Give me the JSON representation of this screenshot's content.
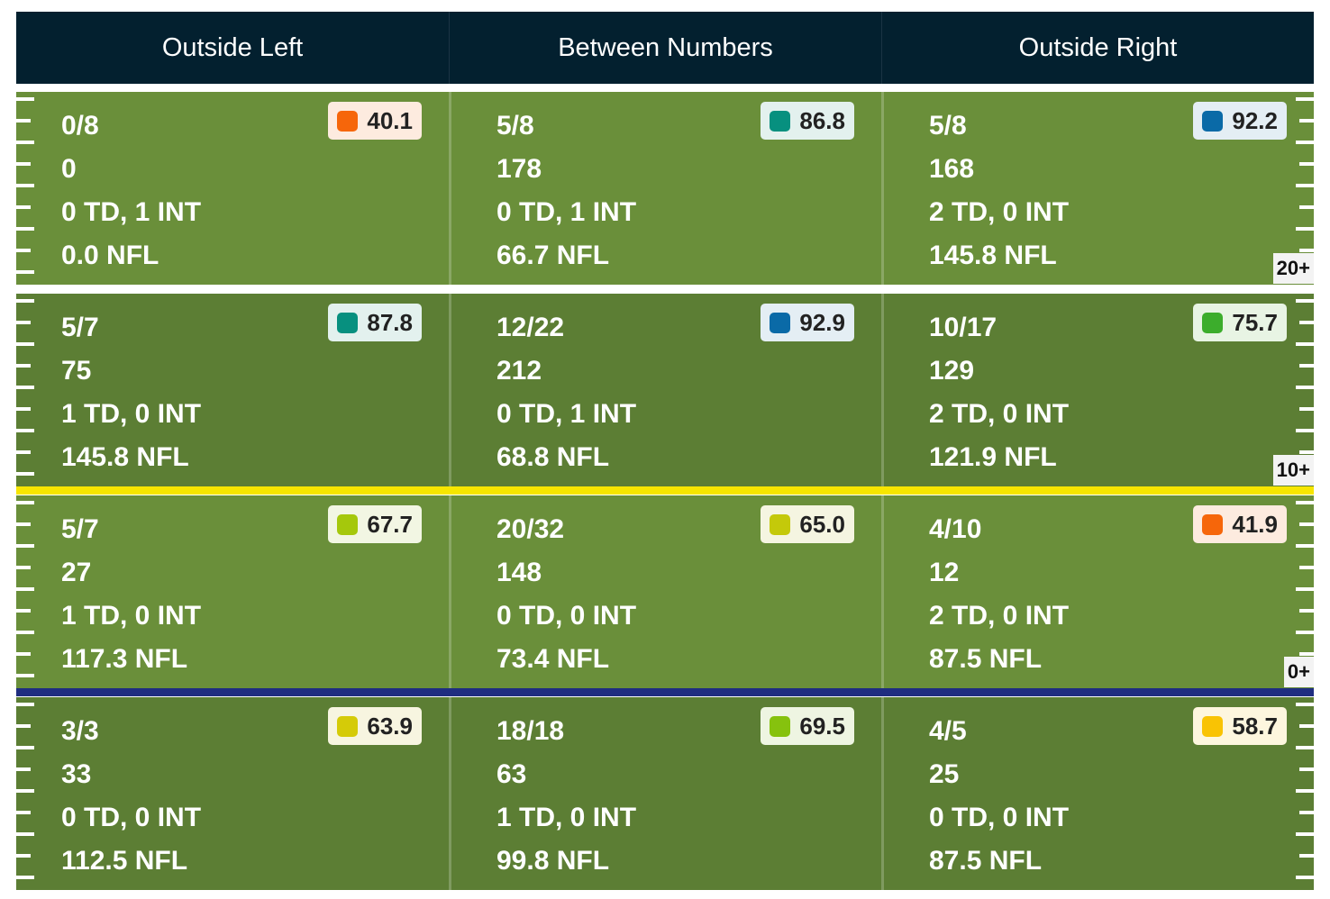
{
  "header": {
    "columns": [
      "Outside Left",
      "Between Numbers",
      "Outside Right"
    ],
    "background": "#03202f"
  },
  "colors": {
    "field_light": "#6a8f3a",
    "field_dark": "#5c7e34",
    "separator_white": "#ffffff",
    "separator_yellow": "#f7e600",
    "separator_navy": "#1f2d80"
  },
  "rows": [
    {
      "zone": "20+",
      "cells": [
        {
          "comp": "0/8",
          "yards": "0",
          "td_int": "0 TD, 1 INT",
          "rating": "0.0 NFL",
          "grade": "40.1",
          "grade_color": "#f6660a",
          "badge_bg": "#fdebdf"
        },
        {
          "comp": "5/8",
          "yards": "178",
          "td_int": "0 TD, 1 INT",
          "rating": "66.7 NFL",
          "grade": "86.8",
          "grade_color": "#07907f",
          "badge_bg": "#e3f1ee"
        },
        {
          "comp": "5/8",
          "yards": "168",
          "td_int": "2 TD, 0 INT",
          "rating": "145.8 NFL",
          "grade": "92.2",
          "grade_color": "#0a6aa7",
          "badge_bg": "#e4eef4"
        }
      ]
    },
    {
      "zone": "10+",
      "cells": [
        {
          "comp": "5/7",
          "yards": "75",
          "td_int": "1 TD, 0 INT",
          "rating": "145.8 NFL",
          "grade": "87.8",
          "grade_color": "#07907f",
          "badge_bg": "#e3f1ee"
        },
        {
          "comp": "12/22",
          "yards": "212",
          "td_int": "0 TD, 1 INT",
          "rating": "68.8 NFL",
          "grade": "92.9",
          "grade_color": "#0a6aa7",
          "badge_bg": "#e4eef4"
        },
        {
          "comp": "10/17",
          "yards": "129",
          "td_int": "2 TD, 0 INT",
          "rating": "121.9 NFL",
          "grade": "75.7",
          "grade_color": "#3cad2c",
          "badge_bg": "#e8f4e4"
        }
      ]
    },
    {
      "zone": "0+",
      "cells": [
        {
          "comp": "5/7",
          "yards": "27",
          "td_int": "1 TD, 0 INT",
          "rating": "117.3 NFL",
          "grade": "67.7",
          "grade_color": "#a5c80c",
          "badge_bg": "#f2f6e3"
        },
        {
          "comp": "20/32",
          "yards": "148",
          "td_int": "0 TD, 0 INT",
          "rating": "73.4 NFL",
          "grade": "65.0",
          "grade_color": "#c4c90a",
          "badge_bg": "#f5f5e1"
        },
        {
          "comp": "4/10",
          "yards": "12",
          "td_int": "2 TD, 0 INT",
          "rating": "87.5 NFL",
          "grade": "41.9",
          "grade_color": "#f6660a",
          "badge_bg": "#fdebdf"
        }
      ]
    },
    {
      "zone": "",
      "cells": [
        {
          "comp": "3/3",
          "yards": "33",
          "td_int": "0 TD, 0 INT",
          "rating": "112.5 NFL",
          "grade": "63.9",
          "grade_color": "#d5cb08",
          "badge_bg": "#f7f5e0"
        },
        {
          "comp": "18/18",
          "yards": "63",
          "td_int": "1 TD, 0 INT",
          "rating": "99.8 NFL",
          "grade": "69.5",
          "grade_color": "#86c20e",
          "badge_bg": "#eef5e2"
        },
        {
          "comp": "4/5",
          "yards": "25",
          "td_int": "0 TD, 0 INT",
          "rating": "87.5 NFL",
          "grade": "58.7",
          "grade_color": "#f9c304",
          "badge_bg": "#fdf6de"
        }
      ]
    }
  ]
}
